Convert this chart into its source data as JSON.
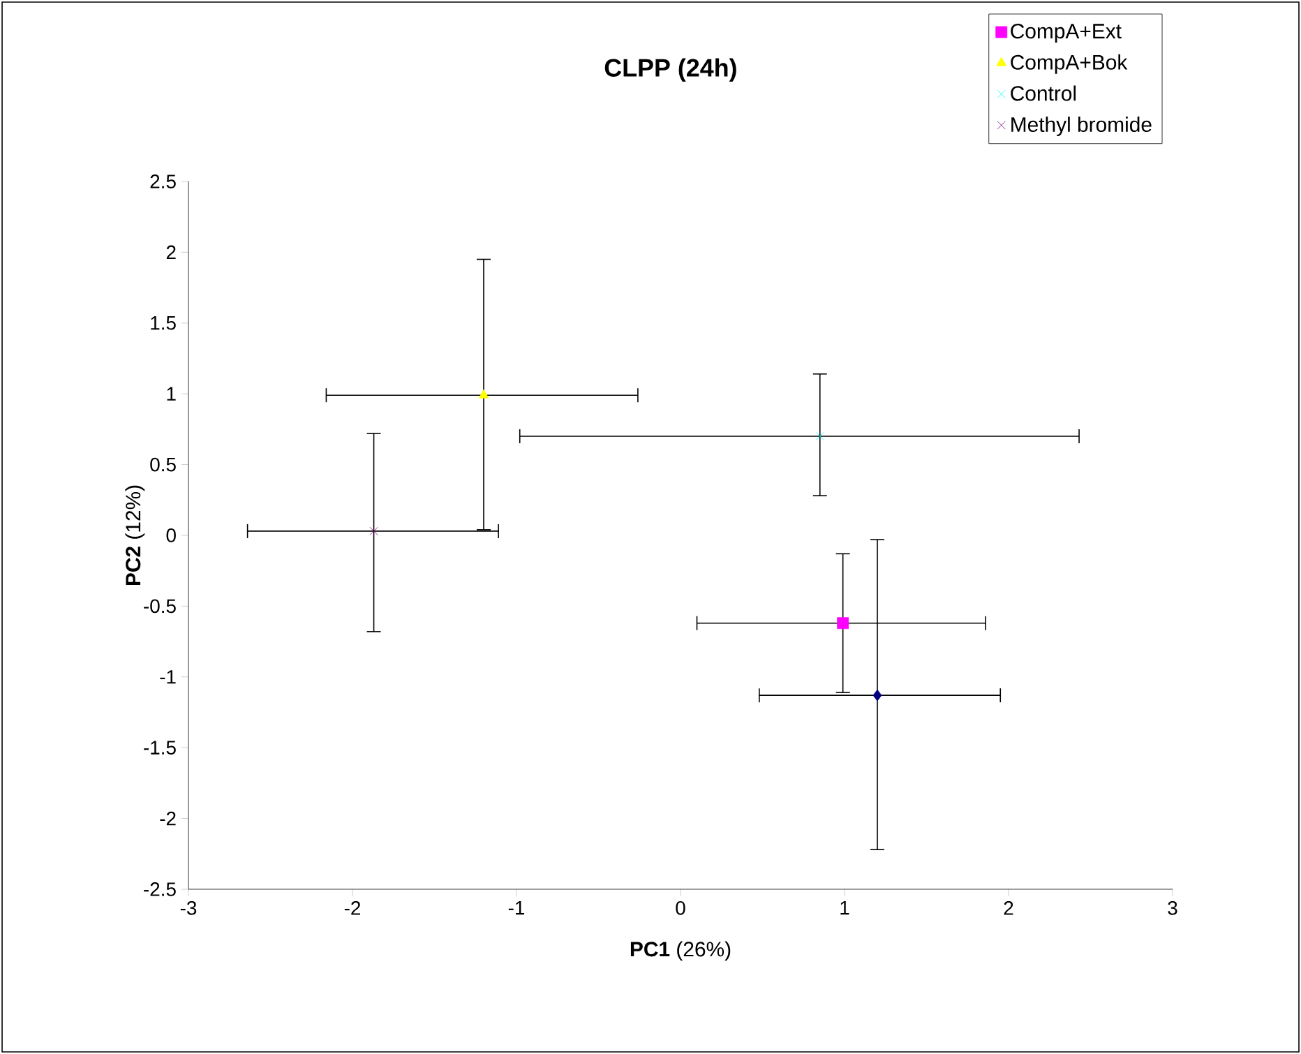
{
  "chart_data": {
    "type": "scatter",
    "title": "CLPP (24h)",
    "xlabel": "**PC1** (26%)",
    "ylabel": "**PC2** (12%)",
    "xlim": [
      -3,
      3
    ],
    "xticks": [
      -3,
      -2,
      -1,
      0,
      1,
      2,
      3
    ],
    "ylim": [
      -2.5,
      2.5
    ],
    "yticks": [
      -2.5,
      -2,
      -1.5,
      -1,
      -0.5,
      0,
      0.5,
      1,
      1.5,
      2,
      2.5
    ],
    "grid": false,
    "legend": "top right",
    "series": [
      {
        "color": "#000080",
        "marker": "diamond",
        "x": [
          1.2
        ],
        "values": [
          -1.13
        ],
        "xerrors": [
          [
            0.48,
            1.95
          ]
        ],
        "errors": [
          [
            -2.22,
            -0.03
          ]
        ]
      },
      {
        "name": "CompA+Ext",
        "color": "#ff00ff",
        "marker": "square",
        "x": [
          0.99
        ],
        "values": [
          -0.62
        ],
        "xerrors": [
          [
            0.1,
            1.86
          ]
        ],
        "errors": [
          [
            -1.11,
            -0.13
          ]
        ]
      },
      {
        "name": "CompA+Bok",
        "color": "#ffff00",
        "marker": "triangle",
        "x": [
          -1.2
        ],
        "values": [
          0.99
        ],
        "xerrors": [
          [
            -2.16,
            -0.26
          ]
        ],
        "errors": [
          [
            0.04,
            1.95
          ]
        ]
      },
      {
        "name": "Control",
        "color": "#00ffff",
        "marker": "cross",
        "x": [
          0.85
        ],
        "values": [
          0.7
        ],
        "xerrors": [
          [
            -0.98,
            2.43
          ]
        ],
        "errors": [
          [
            0.28,
            1.14
          ]
        ]
      },
      {
        "name": "Methyl bromide",
        "color": "#800080",
        "marker": "cross",
        "x": [
          -1.87
        ],
        "values": [
          0.03
        ],
        "xerrors": [
          [
            -2.64,
            -1.11
          ]
        ],
        "errors": [
          [
            -0.68,
            0.72
          ]
        ]
      }
    ]
  }
}
